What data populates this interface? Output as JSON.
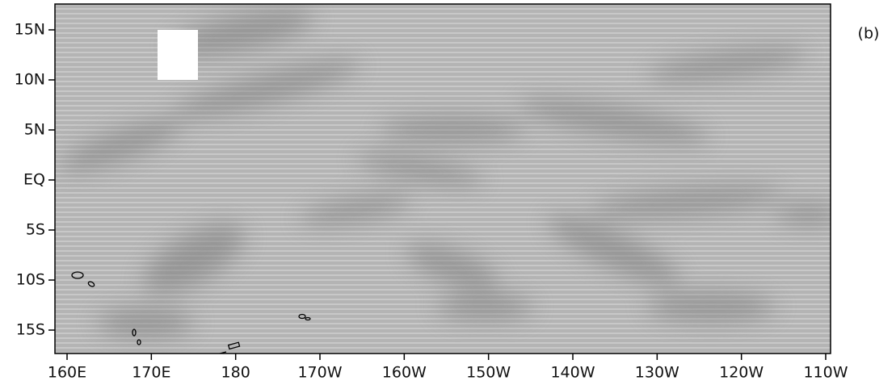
{
  "panel_label": "(b)",
  "map": {
    "lon_ticks": [
      "160E",
      "170E",
      "180",
      "170W",
      "160W",
      "150W",
      "140W",
      "130W",
      "120W",
      "110W"
    ],
    "lat_ticks": [
      "15N",
      "10N",
      "5N",
      "EQ",
      "5S",
      "10S",
      "15S"
    ]
  }
}
